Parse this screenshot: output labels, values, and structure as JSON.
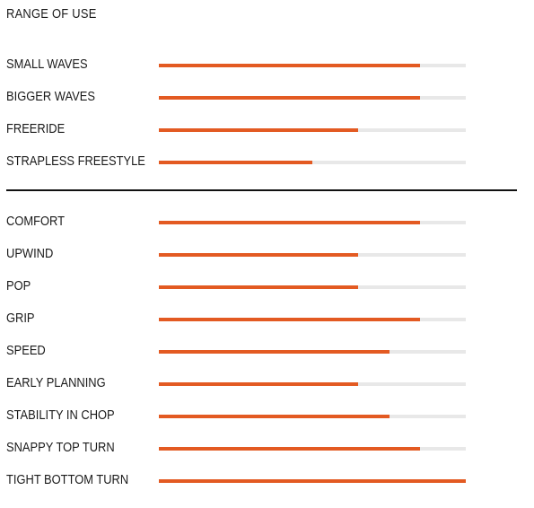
{
  "section": {
    "title": "RANGE OF USE"
  },
  "colors": {
    "accent": "#e35a22",
    "track": "#e8e8e8",
    "text": "#1a1a1a",
    "divider": "#111111"
  },
  "ratings": [
    {
      "label": "SMALL WAVES",
      "level": 0.85
    },
    {
      "label": "BIGGER WAVES",
      "level": 0.85
    },
    {
      "label": "FREERIDE",
      "level": 0.65
    },
    {
      "label": "STRAPLESS FREESTYLE",
      "level": 0.5
    },
    {
      "label": "COMFORT",
      "level": 0.85
    },
    {
      "label": "UPWIND",
      "level": 0.65
    },
    {
      "label": "POP",
      "level": 0.65
    },
    {
      "label": "GRIP",
      "level": 0.85
    },
    {
      "label": "SPEED",
      "level": 0.75
    },
    {
      "label": "EARLY PLANNING",
      "level": 0.65
    },
    {
      "label": "STABILITY IN CHOP",
      "level": 0.75
    },
    {
      "label": "SNAPPY TOP TURN",
      "level": 0.85
    },
    {
      "label": "TIGHT BOTTOM TURN",
      "level": 1.0
    }
  ]
}
